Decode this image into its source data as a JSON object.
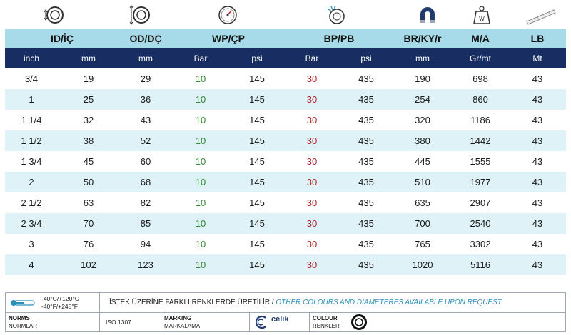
{
  "icons": [
    {
      "name": "inner-diameter-icon",
      "col": "id"
    },
    {
      "name": "outer-diameter-icon",
      "col": "od"
    },
    {
      "name": "pressure-gauge-icon",
      "col": "wp"
    },
    {
      "name": "burst-pressure-icon",
      "col": "bp"
    },
    {
      "name": "bend-radius-magnet-icon",
      "col": "br"
    },
    {
      "name": "weight-icon",
      "col": "ma"
    },
    {
      "name": "length-ruler-icon",
      "col": "lb"
    }
  ],
  "header": {
    "id": "ID/İÇ",
    "od": "OD/DÇ",
    "wp": "WP/ÇP",
    "bp": "BP/PB",
    "br": "BR/KY/r",
    "ma": "M/A",
    "lb": "LB"
  },
  "units": [
    "inch",
    "mm",
    "mm",
    "Bar",
    "psi",
    "Bar",
    "psi",
    "mm",
    "Gr/mt",
    "Mt"
  ],
  "rows": [
    [
      "3/4",
      "19",
      "29",
      "10",
      "145",
      "30",
      "435",
      "190",
      "698",
      "43"
    ],
    [
      "1",
      "25",
      "36",
      "10",
      "145",
      "30",
      "435",
      "254",
      "860",
      "43"
    ],
    [
      "1 1/4",
      "32",
      "43",
      "10",
      "145",
      "30",
      "435",
      "320",
      "1186",
      "43"
    ],
    [
      "1 1/2",
      "38",
      "52",
      "10",
      "145",
      "30",
      "435",
      "380",
      "1442",
      "43"
    ],
    [
      "1 3/4",
      "45",
      "60",
      "10",
      "145",
      "30",
      "435",
      "445",
      "1555",
      "43"
    ],
    [
      "2",
      "50",
      "68",
      "10",
      "145",
      "30",
      "435",
      "510",
      "1977",
      "43"
    ],
    [
      "2 1/2",
      "63",
      "82",
      "10",
      "145",
      "30",
      "435",
      "635",
      "2907",
      "43"
    ],
    [
      "2 3/4",
      "70",
      "85",
      "10",
      "145",
      "30",
      "435",
      "700",
      "2540",
      "43"
    ],
    [
      "3",
      "76",
      "94",
      "10",
      "145",
      "30",
      "435",
      "765",
      "3302",
      "43"
    ],
    [
      "4",
      "102",
      "123",
      "10",
      "145",
      "30",
      "435",
      "1020",
      "5116",
      "43"
    ]
  ],
  "colors": {
    "header_bg": "#a8dbe9",
    "units_bg": "#182e63",
    "alt_row_bg": "#dff2f7",
    "wp_text": "#2c8a2c",
    "bp_text": "#b3262d",
    "notice_en": "#2d8fb8"
  },
  "footer": {
    "temp_c": "-40°C/+120°C",
    "temp_f": "-40°F/+248°F",
    "notice_tr": "İSTEK ÜZERİNE FARKLI RENKLERDE ÜRETİLİR /",
    "notice_en": " OTHER COLOURS AND DIAMETERES AVAILABLE UPON REQUEST",
    "norms_label": "NORMS",
    "norms_sub": "NORMLAR",
    "norms_value": "ISO 1307",
    "marking_label": "MARKING",
    "marking_sub": "MARKALAMA",
    "brand_name": "celik",
    "colour_label": "COLOUR",
    "colour_sub": "RENKLER"
  }
}
